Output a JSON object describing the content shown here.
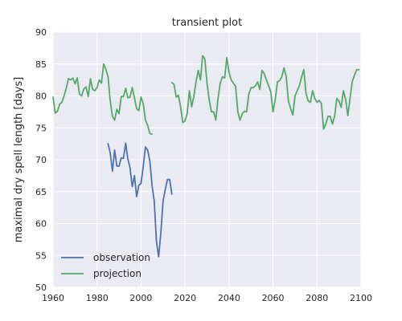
{
  "chart_data": {
    "type": "line",
    "title": "transient plot",
    "xlabel": "",
    "ylabel": "maximal dry spell length [days]",
    "xlim": [
      1960,
      2100
    ],
    "ylim": [
      50,
      90
    ],
    "xticks": [
      1960,
      1980,
      2000,
      2020,
      2040,
      2060,
      2080,
      2100
    ],
    "yticks": [
      50,
      55,
      60,
      65,
      70,
      75,
      80,
      85,
      90
    ],
    "grid": true,
    "legend_position": "lower-left",
    "background_color": "#eaeaf2",
    "series": [
      {
        "name": "observation",
        "color": "#4c72b0",
        "segments": [
          {
            "x": [
              1985,
              1986,
              1987,
              1988,
              1989,
              1990,
              1991,
              1992,
              1993,
              1994,
              1995,
              1996,
              1997,
              1998,
              1999,
              2000,
              2001,
              2002,
              2003,
              2004,
              2005,
              2006,
              2007,
              2008,
              2009,
              2010,
              2011,
              2012,
              2013,
              2014
            ],
            "y": [
              72.5,
              71.0,
              68.2,
              71.5,
              69.0,
              69.0,
              70.3,
              70.2,
              72.6,
              70.1,
              68.7,
              65.8,
              67.5,
              64.2,
              66.0,
              66.3,
              69.0,
              72.0,
              71.5,
              69.8,
              66.0,
              63.5,
              57.2,
              54.8,
              58.5,
              63.5,
              65.3,
              66.9,
              66.9,
              64.6
            ]
          }
        ]
      },
      {
        "name": "projection",
        "color": "#55a868",
        "segments": [
          {
            "x": [
              1960,
              1961,
              1962,
              1963,
              1964,
              1965,
              1966,
              1967,
              1968,
              1969,
              1970,
              1971,
              1972,
              1973,
              1974,
              1975,
              1976,
              1977,
              1978,
              1979,
              1980,
              1981,
              1982,
              1983,
              1984,
              1985,
              1986,
              1987,
              1988,
              1989,
              1990,
              1991,
              1992,
              1993,
              1994,
              1995,
              1996,
              1997,
              1998,
              1999,
              2000,
              2001,
              2002,
              2003,
              2004,
              2005
            ],
            "y": [
              79.8,
              77.3,
              77.6,
              78.7,
              79.0,
              80.0,
              81.2,
              82.7,
              82.5,
              82.8,
              81.9,
              82.8,
              80.3,
              80.0,
              81.1,
              81.4,
              79.9,
              82.7,
              81.0,
              80.8,
              81.3,
              82.5,
              82.0,
              85.0,
              84.2,
              83.0,
              79.2,
              76.8,
              76.2,
              77.9,
              77.2,
              79.9,
              79.9,
              81.2,
              79.7,
              79.8,
              81.3,
              79.7,
              78.0,
              77.7,
              79.8,
              78.8,
              76.2,
              75.4,
              74.1,
              74.0
            ]
          },
          {
            "x": [
              2014,
              2015,
              2016,
              2017,
              2018,
              2019,
              2020,
              2021,
              2022,
              2023,
              2024,
              2025,
              2026,
              2027,
              2028,
              2029,
              2030,
              2031,
              2032,
              2033,
              2034,
              2035,
              2036,
              2037,
              2038,
              2039,
              2040,
              2041,
              2042,
              2043,
              2044,
              2045,
              2046,
              2047,
              2048,
              2049,
              2050,
              2051,
              2052,
              2053,
              2054,
              2055,
              2056,
              2057,
              2058,
              2059,
              2060,
              2061,
              2062,
              2063,
              2064,
              2065,
              2066,
              2067,
              2068,
              2069,
              2070,
              2071,
              2072,
              2073,
              2074,
              2075,
              2076,
              2077,
              2078,
              2079,
              2080,
              2081,
              2082,
              2083,
              2084,
              2085,
              2086,
              2087,
              2088,
              2089,
              2090,
              2091,
              2092,
              2093,
              2094,
              2095,
              2096,
              2097,
              2098,
              2099
            ],
            "y": [
              82.1,
              81.8,
              79.8,
              80.1,
              78.2,
              75.8,
              76.1,
              77.3,
              80.8,
              78.3,
              79.9,
              82.2,
              84.0,
              82.5,
              86.3,
              85.8,
              82.0,
              79.3,
              77.5,
              77.5,
              76.2,
              79.6,
              82.0,
              83.0,
              82.8,
              86.0,
              83.7,
              82.5,
              82.0,
              81.5,
              77.5,
              76.2,
              77.2,
              77.6,
              77.5,
              80.3,
              81.3,
              81.3,
              81.6,
              82.2,
              81.0,
              84.0,
              83.5,
              82.5,
              81.6,
              80.6,
              77.5,
              79.4,
              82.2,
              82.4,
              83.0,
              84.4,
              83.0,
              79.2,
              78.0,
              77.0,
              80.0,
              80.8,
              81.6,
              83.0,
              84.1,
              80.4,
              79.2,
              79.0,
              80.8,
              79.6,
              79.0,
              79.3,
              78.8,
              74.8,
              75.6,
              76.8,
              76.8,
              75.6,
              76.8,
              79.6,
              79.2,
              78.2,
              80.8,
              79.5,
              76.9,
              79.6,
              82.2,
              83.2,
              84.1,
              84.1
            ]
          }
        ]
      }
    ]
  }
}
